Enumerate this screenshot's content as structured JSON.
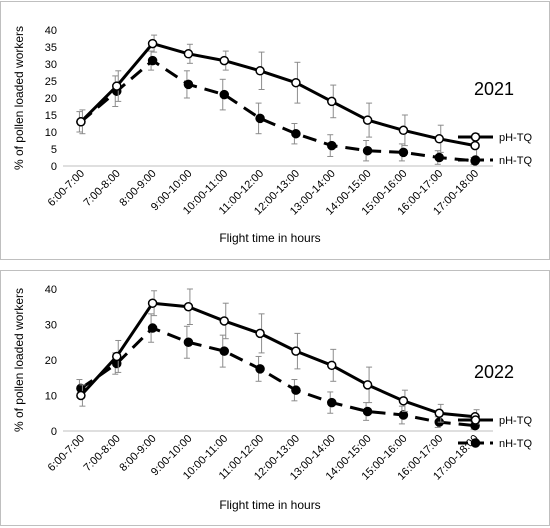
{
  "chart_data": [
    {
      "type": "line",
      "title": "2021",
      "xlabel": "Flight time in hours",
      "ylabel": "% of pollen loaded workers",
      "ylim": [
        0,
        40
      ],
      "yticks": [
        "0",
        "5",
        "10",
        "15",
        "20",
        "25",
        "30",
        "35",
        "40"
      ],
      "categories": [
        "6:00-7:00",
        "7:00-8:00",
        "8:00-9:00",
        "9:00-10:00",
        "10:00-11:00",
        "11:00-12:00",
        "12:00-13:00",
        "13:00-14:00",
        "14:00-15:00",
        "15:00-16:00",
        "16:00-17:00",
        "17:00-18:00"
      ],
      "legend_position": "right",
      "grid": false,
      "series": [
        {
          "name": "pH-TQ",
          "style": "solid",
          "marker": "open-circle",
          "color": "#000000",
          "values": [
            13,
            23.5,
            36,
            33,
            31,
            28,
            24.5,
            19,
            13.5,
            10.5,
            8,
            6
          ],
          "error": [
            3.5,
            4.5,
            2.5,
            2.8,
            2.8,
            5.5,
            6,
            4.8,
            5,
            4.5,
            4,
            3.5
          ]
        },
        {
          "name": "nH-TQ",
          "style": "dashed",
          "marker": "filled-circle",
          "color": "#000000",
          "values": [
            13,
            22,
            31,
            24,
            21,
            14,
            9.5,
            6,
            4.5,
            4,
            2.5,
            1.5
          ],
          "error": [
            3,
            4.5,
            2.8,
            4,
            4.5,
            4.5,
            3,
            3.2,
            3,
            2.5,
            2,
            1
          ]
        }
      ]
    },
    {
      "type": "line",
      "title": "2022",
      "xlabel": "Flight time in hours",
      "ylabel": "% of pollen loaded workers",
      "ylim": [
        0,
        40
      ],
      "yticks": [
        "0",
        "10",
        "20",
        "30",
        "40"
      ],
      "categories": [
        "6:00-7:00",
        "7:00-8:00",
        "8:00-9:00",
        "9:00-10:00",
        "10:00-11:00",
        "11:00-12:00",
        "12:00-13:00",
        "13:00-14:00",
        "14:00-15:00",
        "15:00-16:00",
        "16:00-17:00",
        "17:00-18:00"
      ],
      "legend_position": "right",
      "grid": false,
      "series": [
        {
          "name": "pH-TQ",
          "style": "solid",
          "marker": "open-circle",
          "color": "#000000",
          "values": [
            10,
            21,
            36,
            35,
            31,
            27.5,
            22.5,
            18.5,
            13,
            8.5,
            5,
            4
          ],
          "error": [
            3,
            4.5,
            3.5,
            5,
            5,
            5.5,
            5,
            4.5,
            5,
            3,
            2.5,
            2
          ]
        },
        {
          "name": "nH-TQ",
          "style": "dashed",
          "marker": "filled-circle",
          "color": "#000000",
          "values": [
            12,
            19,
            29,
            25,
            22.5,
            17.5,
            11.5,
            8,
            5.5,
            4.5,
            2.5,
            1.5
          ],
          "error": [
            2.5,
            3,
            4,
            4.5,
            4.5,
            3.5,
            3,
            3,
            2.5,
            2.5,
            1.5,
            1
          ]
        }
      ]
    }
  ]
}
